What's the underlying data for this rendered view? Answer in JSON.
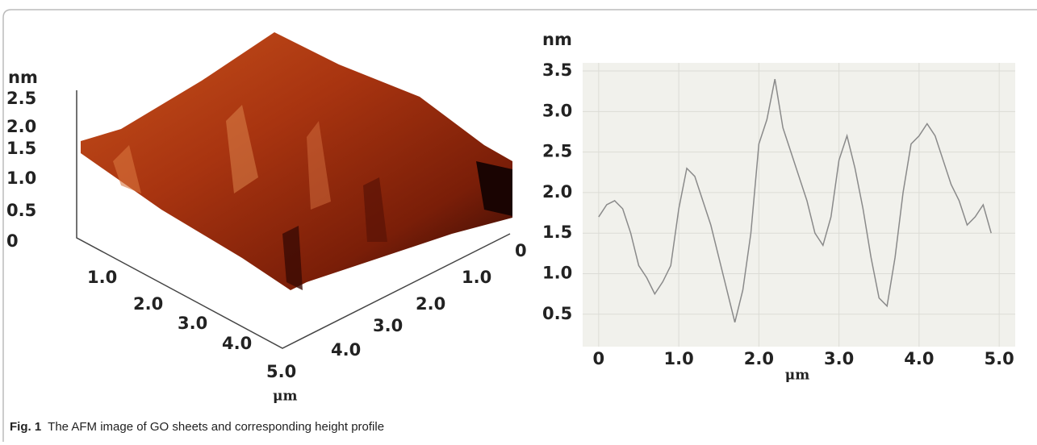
{
  "afm_image": {
    "z_unit": "nm",
    "z_ticks": [
      "2.5",
      "2.0",
      "1.5",
      "1.0",
      "0.5",
      "0"
    ],
    "x_ticks": [
      "1.0",
      "2.0",
      "3.0",
      "4.0",
      "5.0"
    ],
    "y_ticks": [
      "0",
      "1.0",
      "2.0",
      "3.0",
      "4.0"
    ],
    "x_unit": "μm"
  },
  "chart_data": {
    "type": "line",
    "x_label": "μm",
    "y_label": "nm",
    "x": [
      0,
      0.1,
      0.2,
      0.3,
      0.4,
      0.5,
      0.6,
      0.7,
      0.8,
      0.9,
      1.0,
      1.1,
      1.2,
      1.3,
      1.4,
      1.5,
      1.6,
      1.7,
      1.8,
      1.9,
      2.0,
      2.1,
      2.2,
      2.3,
      2.4,
      2.5,
      2.6,
      2.7,
      2.8,
      2.9,
      3.0,
      3.1,
      3.2,
      3.3,
      3.4,
      3.5,
      3.6,
      3.7,
      3.8,
      3.9,
      4.0,
      4.1,
      4.2,
      4.3,
      4.4,
      4.5,
      4.6,
      4.7,
      4.8,
      4.9
    ],
    "values": [
      1.7,
      1.85,
      1.9,
      1.8,
      1.5,
      1.1,
      0.95,
      0.75,
      0.9,
      1.1,
      1.8,
      2.3,
      2.2,
      1.9,
      1.6,
      1.2,
      0.8,
      0.4,
      0.8,
      1.5,
      2.6,
      2.9,
      3.4,
      2.8,
      2.5,
      2.2,
      1.9,
      1.5,
      1.35,
      1.7,
      2.4,
      2.7,
      2.3,
      1.8,
      1.2,
      0.7,
      0.6,
      1.2,
      2.0,
      2.6,
      2.7,
      2.85,
      2.7,
      2.4,
      2.1,
      1.9,
      1.6,
      1.7,
      1.85,
      1.5
    ],
    "color": "#8a8a8a",
    "xlim": [
      -0.2,
      5.2
    ],
    "ylim": [
      0.1,
      3.6
    ],
    "xticks": [
      0,
      {
        "value": 1,
        "label": "1.0"
      },
      {
        "value": 2,
        "label": "2.0"
      },
      {
        "value": 3,
        "label": "3.0"
      },
      {
        "value": 4,
        "label": "4.0"
      },
      {
        "value": 5,
        "label": "5.0"
      }
    ],
    "yticks": [
      0.5,
      {
        "value": 1,
        "label": "1.0"
      },
      1.5,
      {
        "value": 2,
        "label": "2.0"
      },
      2.5,
      {
        "value": 3,
        "label": "3.0"
      },
      3.5
    ],
    "grid": true
  },
  "caption": {
    "label": "Fig. 1",
    "text": "The AFM image of GO sheets and corresponding height profile"
  }
}
